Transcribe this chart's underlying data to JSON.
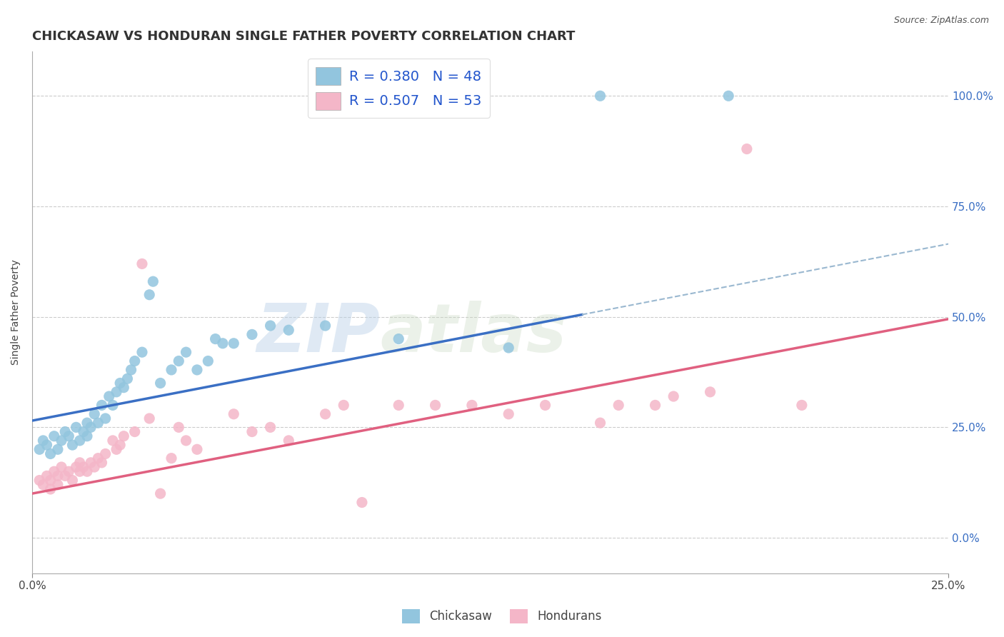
{
  "title": "CHICKASAW VS HONDURAN SINGLE FATHER POVERTY CORRELATION CHART",
  "source_text": "Source: ZipAtlas.com",
  "ylabel": "Single Father Poverty",
  "watermark_zip": "ZIP",
  "watermark_atlas": "atlas",
  "xlim": [
    0.0,
    0.25
  ],
  "ylim": [
    -0.08,
    1.1
  ],
  "yticks": [
    0.0,
    0.25,
    0.5,
    0.75,
    1.0
  ],
  "ytick_labels": [
    "0.0%",
    "25.0%",
    "50.0%",
    "75.0%",
    "100.0%"
  ],
  "xticks": [
    0.0,
    0.25
  ],
  "xtick_labels": [
    "0.0%",
    "25.0%"
  ],
  "chickasaw_color": "#92c5de",
  "honduran_color": "#f4b6c8",
  "legend_R_label1": "R = 0.380   N = 48",
  "legend_R_label2": "R = 0.507   N = 53",
  "chickasaw_line_color": "#3a6fc4",
  "honduran_line_color": "#e06080",
  "dashed_line_color": "#9ab8d0",
  "title_fontsize": 13,
  "axis_label_fontsize": 10,
  "tick_fontsize": 11,
  "background_color": "#ffffff",
  "grid_color": "#cccccc",
  "chickasaw_line_x0": 0.0,
  "chickasaw_line_y0": 0.265,
  "chickasaw_line_x1": 0.15,
  "chickasaw_line_y1": 0.505,
  "dashed_line_x0": 0.15,
  "dashed_line_y0": 0.505,
  "dashed_line_x1": 0.25,
  "dashed_line_y1": 0.665,
  "honduran_line_x0": 0.0,
  "honduran_line_y0": 0.1,
  "honduran_line_x1": 0.25,
  "honduran_line_y1": 0.495,
  "chickasaw_x": [
    0.002,
    0.003,
    0.004,
    0.005,
    0.006,
    0.007,
    0.008,
    0.009,
    0.01,
    0.011,
    0.012,
    0.013,
    0.014,
    0.015,
    0.015,
    0.016,
    0.017,
    0.018,
    0.019,
    0.02,
    0.021,
    0.022,
    0.023,
    0.024,
    0.025,
    0.026,
    0.027,
    0.028,
    0.03,
    0.032,
    0.033,
    0.035,
    0.038,
    0.04,
    0.042,
    0.045,
    0.048,
    0.05,
    0.052,
    0.055,
    0.06,
    0.065,
    0.07,
    0.08,
    0.1,
    0.13,
    0.155,
    0.19
  ],
  "chickasaw_y": [
    0.2,
    0.22,
    0.21,
    0.19,
    0.23,
    0.2,
    0.22,
    0.24,
    0.23,
    0.21,
    0.25,
    0.22,
    0.24,
    0.23,
    0.26,
    0.25,
    0.28,
    0.26,
    0.3,
    0.27,
    0.32,
    0.3,
    0.33,
    0.35,
    0.34,
    0.36,
    0.38,
    0.4,
    0.42,
    0.55,
    0.58,
    0.35,
    0.38,
    0.4,
    0.42,
    0.38,
    0.4,
    0.45,
    0.44,
    0.44,
    0.46,
    0.48,
    0.47,
    0.48,
    0.45,
    0.43,
    1.0,
    1.0
  ],
  "honduran_x": [
    0.002,
    0.003,
    0.004,
    0.005,
    0.005,
    0.006,
    0.007,
    0.007,
    0.008,
    0.009,
    0.01,
    0.011,
    0.012,
    0.013,
    0.013,
    0.014,
    0.015,
    0.016,
    0.017,
    0.018,
    0.019,
    0.02,
    0.022,
    0.023,
    0.024,
    0.025,
    0.028,
    0.03,
    0.032,
    0.035,
    0.038,
    0.04,
    0.042,
    0.045,
    0.055,
    0.06,
    0.065,
    0.07,
    0.08,
    0.085,
    0.09,
    0.1,
    0.11,
    0.12,
    0.13,
    0.14,
    0.155,
    0.16,
    0.17,
    0.175,
    0.185,
    0.195,
    0.21
  ],
  "honduran_y": [
    0.13,
    0.12,
    0.14,
    0.13,
    0.11,
    0.15,
    0.14,
    0.12,
    0.16,
    0.14,
    0.15,
    0.13,
    0.16,
    0.15,
    0.17,
    0.16,
    0.15,
    0.17,
    0.16,
    0.18,
    0.17,
    0.19,
    0.22,
    0.2,
    0.21,
    0.23,
    0.24,
    0.62,
    0.27,
    0.1,
    0.18,
    0.25,
    0.22,
    0.2,
    0.28,
    0.24,
    0.25,
    0.22,
    0.28,
    0.3,
    0.08,
    0.3,
    0.3,
    0.3,
    0.28,
    0.3,
    0.26,
    0.3,
    0.3,
    0.32,
    0.33,
    0.88,
    0.3
  ]
}
